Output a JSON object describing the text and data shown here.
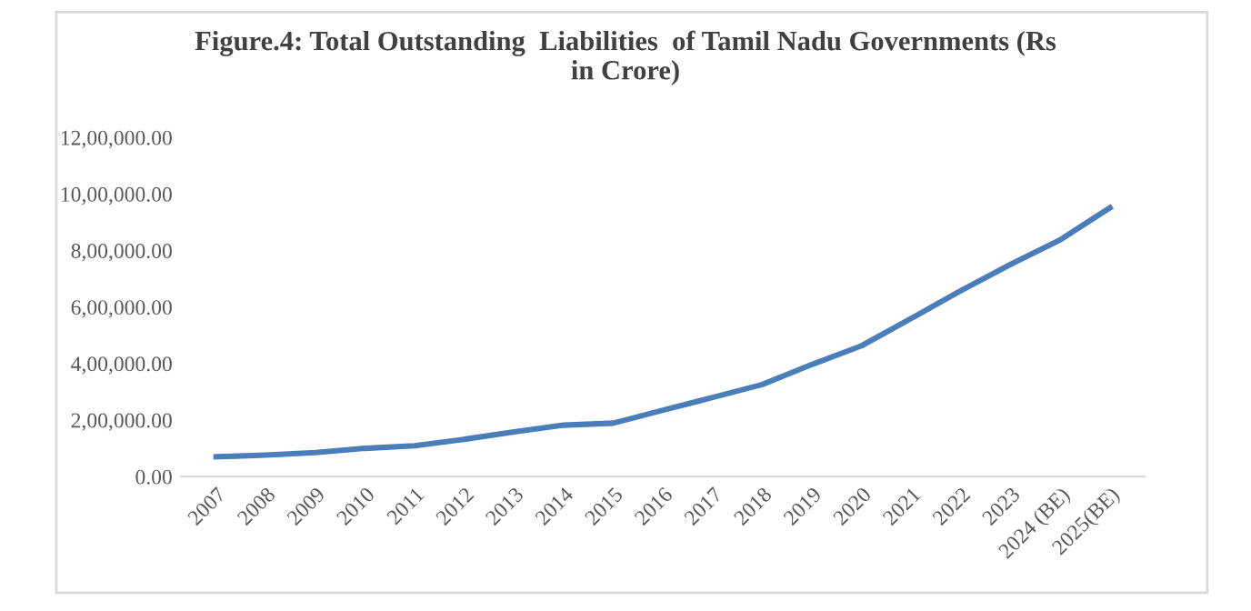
{
  "chart_data": {
    "type": "line",
    "title": "Figure.4: Total Outstanding  Liabilities  of Tamil Nadu Governments (Rs\nin Crore)",
    "categories": [
      "2007",
      "2008",
      "2009",
      "2010",
      "2011",
      "2012",
      "2013",
      "2014",
      "2015",
      "2016",
      "2017",
      "2018",
      "2019",
      "2020",
      "2021",
      "2022",
      "2023",
      "2024 (BE)",
      "2025(BE)"
    ],
    "series": [
      {
        "color": "#4a7ebb",
        "values": [
          70000,
          76000,
          85000,
          100000,
          109000,
          132000,
          158000,
          182000,
          189000,
          235000,
          280000,
          326000,
          397000,
          463000,
          560000,
          658000,
          751000,
          838000,
          951000
        ]
      }
    ],
    "ylim": [
      0,
      1200000
    ],
    "yticks": [
      {
        "value": 0,
        "label": "0.00"
      },
      {
        "value": 200000,
        "label": "2,00,000.00"
      },
      {
        "value": 400000,
        "label": "4,00,000.00"
      },
      {
        "value": 600000,
        "label": "6,00,000.00"
      },
      {
        "value": 800000,
        "label": "8,00,000.00"
      },
      {
        "value": 1000000,
        "label": "10,00,000.00"
      },
      {
        "value": 1200000,
        "label": "12,00,000.00"
      }
    ],
    "grid": false,
    "legend": false,
    "marker": "none",
    "line_style": "solid"
  }
}
